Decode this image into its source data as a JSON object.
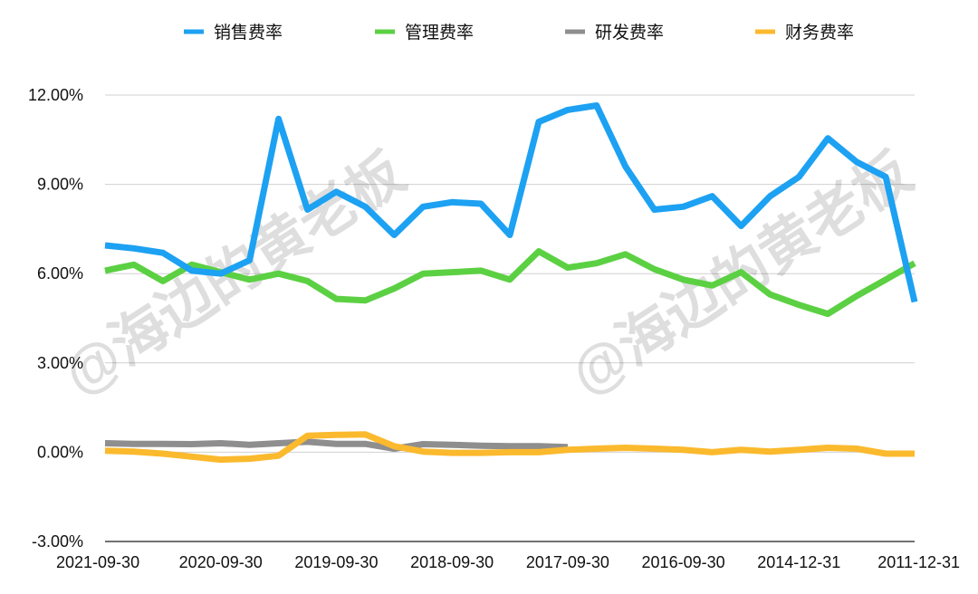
{
  "chart_data": {
    "type": "line",
    "title": "",
    "xlabel": "",
    "ylabel": "",
    "ylim": [
      -3,
      12
    ],
    "yticks": [
      -3,
      0,
      3,
      6,
      9,
      12
    ],
    "ytick_labels": [
      "-3.00%",
      "0.00%",
      "3.00%",
      "6.00%",
      "9.00%",
      "12.00%"
    ],
    "grid": "horizontal",
    "legend_position": "top",
    "x_labels": [
      "2021-09-30",
      "2020-09-30",
      "2019-09-30",
      "2018-09-30",
      "2017-09-30",
      "2016-09-30",
      "2014-12-31",
      "2011-12-31"
    ],
    "x_label_indices": [
      0,
      4,
      8,
      12,
      16,
      20,
      24,
      28
    ],
    "num_points": 29,
    "series": [
      {
        "name": "销售费率",
        "color": "#1da1f2",
        "values": [
          6.95,
          6.85,
          6.7,
          6.1,
          6.0,
          6.45,
          11.2,
          8.15,
          8.75,
          8.25,
          7.3,
          8.25,
          8.4,
          8.35,
          7.3,
          11.1,
          11.5,
          11.65,
          9.6,
          8.15,
          8.25,
          8.6,
          7.6,
          8.6,
          9.25,
          10.55,
          9.75,
          9.25,
          5.05
        ]
      },
      {
        "name": "管理费率",
        "color": "#5cd043",
        "values": [
          6.1,
          6.3,
          5.75,
          6.3,
          6.05,
          5.8,
          6.0,
          5.75,
          5.15,
          5.1,
          5.5,
          6.0,
          6.05,
          6.1,
          5.8,
          6.75,
          6.2,
          6.35,
          6.65,
          6.15,
          5.8,
          5.6,
          6.05,
          5.3,
          4.95,
          4.65,
          5.25,
          5.8,
          6.35
        ]
      },
      {
        "name": "研发费率",
        "color": "#8e8e8e",
        "values": [
          0.3,
          0.28,
          0.28,
          0.27,
          0.3,
          0.25,
          0.3,
          0.35,
          0.28,
          0.28,
          0.12,
          0.27,
          0.25,
          0.22,
          0.2,
          0.2,
          0.17,
          null,
          null,
          null,
          null,
          null,
          null,
          null,
          null,
          null,
          null,
          null,
          null
        ]
      },
      {
        "name": "财务费率",
        "color": "#fbb92d",
        "values": [
          0.05,
          0.02,
          -0.05,
          -0.15,
          -0.25,
          -0.22,
          -0.12,
          0.55,
          0.58,
          0.6,
          0.2,
          0.02,
          -0.02,
          -0.02,
          0.0,
          0.0,
          0.08,
          0.12,
          0.15,
          0.12,
          0.08,
          0.0,
          0.08,
          0.02,
          0.08,
          0.15,
          0.12,
          -0.05,
          -0.05
        ]
      }
    ],
    "watermark": "@海边的黄老板"
  }
}
